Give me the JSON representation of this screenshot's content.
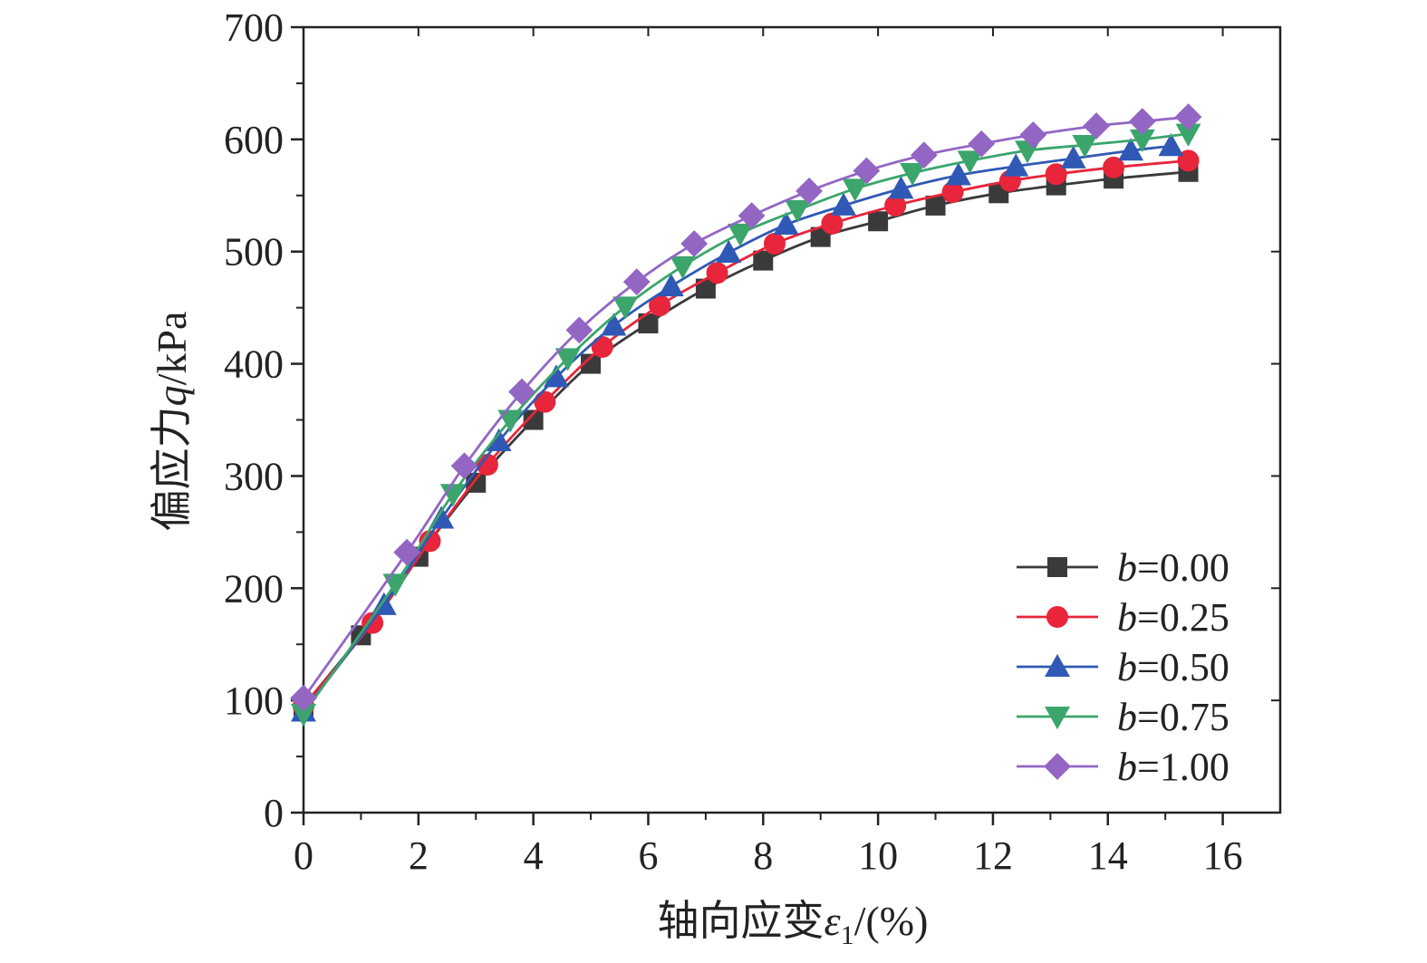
{
  "chart_data": {
    "type": "line",
    "title": "",
    "xlabel": {
      "main": "轴向应变",
      "symbol": "ε",
      "subscript": "1",
      "suffix": "/(%)"
    },
    "ylabel": {
      "main": "偏应力",
      "symbol": "q",
      "suffix": "/kPa"
    },
    "xlim": [
      0,
      17
    ],
    "ylim": [
      0,
      700
    ],
    "x_ticks": [
      0,
      2,
      4,
      6,
      8,
      10,
      12,
      14,
      16
    ],
    "y_ticks": [
      0,
      100,
      200,
      300,
      400,
      500,
      600,
      700
    ],
    "x_tick_labels": [
      "0",
      "2",
      "4",
      "6",
      "8",
      "10",
      "12",
      "14",
      "16"
    ],
    "y_tick_labels": [
      "0",
      "100",
      "200",
      "300",
      "400",
      "500",
      "600",
      "700"
    ],
    "grid": false,
    "legend_position": "bottom-right",
    "series": [
      {
        "name": "b=0.00",
        "label_var": "b",
        "label_value": "=0.00",
        "color": "#3a3a3a",
        "marker": "square",
        "x": [
          0.0,
          1.0,
          2.0,
          3.0,
          4.0,
          5.0,
          6.0,
          7.0,
          8.0,
          9.0,
          10.0,
          11.0,
          12.1,
          13.1,
          14.1,
          15.4
        ],
        "y": [
          95,
          158,
          228,
          294,
          350,
          400,
          436,
          467,
          492,
          513,
          527,
          541,
          552,
          559,
          565,
          571
        ]
      },
      {
        "name": "b=0.25",
        "label_var": "b",
        "label_value": "=0.25",
        "color": "#e8253a",
        "marker": "circle",
        "x": [
          0.0,
          1.2,
          2.2,
          3.2,
          4.2,
          5.2,
          6.2,
          7.2,
          8.2,
          9.2,
          10.3,
          11.3,
          12.3,
          13.1,
          14.1,
          15.4
        ],
        "y": [
          95,
          169,
          242,
          310,
          366,
          415,
          452,
          481,
          507,
          525,
          541,
          553,
          563,
          569,
          575,
          581
        ]
      },
      {
        "name": "b=0.50",
        "label_var": "b",
        "label_value": "=0.50",
        "color": "#2f59b5",
        "marker": "triangle-up",
        "x": [
          0.0,
          1.4,
          2.4,
          3.4,
          4.4,
          5.4,
          6.4,
          7.4,
          8.4,
          9.4,
          10.4,
          11.4,
          12.4,
          13.4,
          14.4,
          15.1
        ],
        "y": [
          90,
          185,
          262,
          331,
          388,
          434,
          469,
          499,
          524,
          541,
          556,
          568,
          576,
          583,
          590,
          594
        ]
      },
      {
        "name": "b=0.75",
        "label_var": "b",
        "label_value": "=0.75",
        "color": "#3ba56c",
        "marker": "triangle-down",
        "x": [
          0.0,
          1.6,
          2.6,
          3.6,
          4.6,
          5.6,
          6.6,
          7.6,
          8.6,
          9.6,
          10.6,
          11.6,
          12.6,
          13.6,
          14.6,
          15.4
        ],
        "y": [
          88,
          204,
          284,
          350,
          405,
          451,
          487,
          516,
          537,
          556,
          570,
          581,
          590,
          595,
          600,
          605
        ]
      },
      {
        "name": "b=1.00",
        "label_var": "b",
        "label_value": "=1.00",
        "color": "#9366c4",
        "marker": "diamond",
        "x": [
          0.0,
          1.8,
          2.8,
          3.8,
          4.8,
          5.8,
          6.8,
          7.8,
          8.8,
          9.8,
          10.8,
          11.8,
          12.7,
          13.8,
          14.6,
          15.4
        ],
        "y": [
          102,
          232,
          309,
          375,
          430,
          473,
          507,
          532,
          554,
          572,
          586,
          596,
          604,
          612,
          616,
          620
        ]
      }
    ]
  }
}
